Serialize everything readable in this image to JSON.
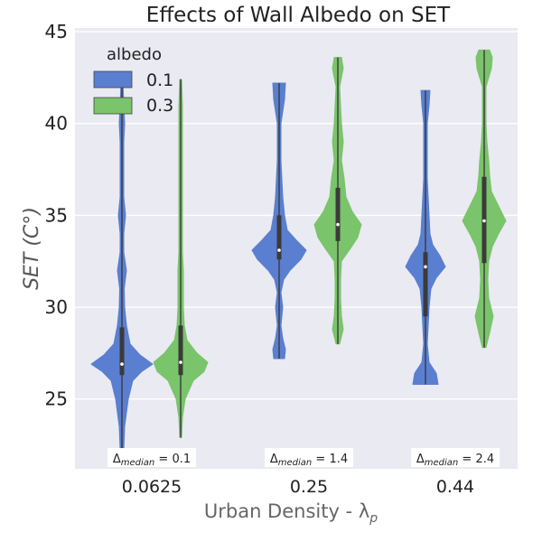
{
  "chart_data": {
    "type": "violin",
    "title": "Effects of Wall Albedo on SET",
    "xlabel": "Urban Density - λ",
    "xlabel_sub": "p",
    "ylabel": "SET (C°)",
    "ylim": [
      21.2,
      45.2
    ],
    "yticks": [
      25,
      30,
      35,
      40,
      45
    ],
    "categories": [
      "0.0625",
      "0.25",
      "0.44"
    ],
    "legend": {
      "title": "albedo",
      "placement": "top-left"
    },
    "series": [
      {
        "name": "0.1",
        "color": "#5a7fd0",
        "violins": [
          {
            "min": 22.2,
            "max": 42.3,
            "q1": 26.3,
            "median": 26.9,
            "q3": 28.9,
            "profile": [
              [
                22.2,
                2
              ],
              [
                23.5,
                3
              ],
              [
                25,
                7
              ],
              [
                26.0,
                12
              ],
              [
                26.5,
                22
              ],
              [
                26.9,
                34
              ],
              [
                27.4,
                20
              ],
              [
                28.0,
                9
              ],
              [
                29,
                5
              ],
              [
                30,
                3
              ],
              [
                31,
                2.5
              ],
              [
                32,
                5
              ],
              [
                33,
                2
              ],
              [
                34,
                2
              ],
              [
                35,
                4
              ],
              [
                36,
                2
              ],
              [
                37,
                2
              ],
              [
                39,
                2
              ],
              [
                40,
                3
              ],
              [
                41,
                2
              ],
              [
                42.3,
                1
              ]
            ]
          },
          {
            "min": 27.2,
            "max": 42.2,
            "q1": 32.6,
            "median": 33.1,
            "q3": 35.0,
            "profile": [
              [
                27.2,
                6
              ],
              [
                27.7,
                7
              ],
              [
                28.3,
                4
              ],
              [
                29,
                2
              ],
              [
                30,
                4
              ],
              [
                30.8,
                2
              ],
              [
                31.5,
                5
              ],
              [
                32,
                12
              ],
              [
                32.6,
                24
              ],
              [
                33.1,
                30
              ],
              [
                33.6,
                20
              ],
              [
                34.2,
                9
              ],
              [
                35,
                6
              ],
              [
                36,
                4
              ],
              [
                37,
                3
              ],
              [
                38,
                2
              ],
              [
                40,
                2
              ],
              [
                41.3,
                6
              ],
              [
                42.2,
                7
              ]
            ]
          },
          {
            "min": 25.8,
            "max": 41.8,
            "q1": 29.5,
            "median": 32.2,
            "q3": 33.0,
            "profile": [
              [
                25.8,
                14
              ],
              [
                26.4,
                12
              ],
              [
                27,
                4
              ],
              [
                28,
                2
              ],
              [
                29,
                3
              ],
              [
                30,
                4
              ],
              [
                31,
                6
              ],
              [
                31.6,
                12
              ],
              [
                32.2,
                22
              ],
              [
                32.8,
                16
              ],
              [
                33.4,
                8
              ],
              [
                34,
                5
              ],
              [
                35,
                4
              ],
              [
                36,
                3
              ],
              [
                37,
                2
              ],
              [
                38,
                2
              ],
              [
                39,
                2
              ],
              [
                40,
                2
              ],
              [
                41,
                4
              ],
              [
                41.8,
                5
              ]
            ]
          }
        ]
      },
      {
        "name": "0.3",
        "color": "#7ac46b",
        "violins": [
          {
            "min": 22.9,
            "max": 42.4,
            "q1": 26.3,
            "median": 27.0,
            "q3": 29.0,
            "profile": [
              [
                22.9,
                1
              ],
              [
                24,
                2
              ],
              [
                25,
                5
              ],
              [
                26.0,
                14
              ],
              [
                26.5,
                26
              ],
              [
                27.0,
                30
              ],
              [
                27.5,
                18
              ],
              [
                28.2,
                7
              ],
              [
                29,
                4
              ],
              [
                30,
                3
              ],
              [
                31,
                3
              ],
              [
                32,
                3
              ],
              [
                33,
                2
              ],
              [
                35,
                2
              ],
              [
                37,
                2
              ],
              [
                39,
                2
              ],
              [
                41,
                2
              ],
              [
                42.4,
                1
              ]
            ]
          },
          {
            "min": 28.0,
            "max": 43.6,
            "q1": 33.6,
            "median": 34.5,
            "q3": 36.5,
            "profile": [
              [
                28.0,
                2
              ],
              [
                28.8,
                6
              ],
              [
                29.5,
                4
              ],
              [
                30.5,
                3
              ],
              [
                31.5,
                3
              ],
              [
                32.5,
                4
              ],
              [
                33.2,
                14
              ],
              [
                33.8,
                22
              ],
              [
                34.5,
                26
              ],
              [
                35.2,
                16
              ],
              [
                36,
                9
              ],
              [
                37,
                7
              ],
              [
                38,
                4
              ],
              [
                39,
                6
              ],
              [
                40,
                4
              ],
              [
                41,
                3
              ],
              [
                42,
                2
              ],
              [
                43,
                6
              ],
              [
                43.6,
                4
              ]
            ]
          },
          {
            "min": 27.8,
            "max": 44.0,
            "q1": 32.4,
            "median": 34.7,
            "q3": 37.1,
            "profile": [
              [
                27.8,
                2
              ],
              [
                28.6,
                6
              ],
              [
                29.5,
                10
              ],
              [
                30.5,
                5
              ],
              [
                31.5,
                4
              ],
              [
                32.5,
                5
              ],
              [
                33.3,
                9
              ],
              [
                34,
                16
              ],
              [
                34.7,
                24
              ],
              [
                35.5,
                16
              ],
              [
                36.3,
                8
              ],
              [
                37.2,
                6
              ],
              [
                38,
                5
              ],
              [
                39,
                3
              ],
              [
                40,
                2
              ],
              [
                41,
                2
              ],
              [
                42,
                2
              ],
              [
                43,
                8
              ],
              [
                43.6,
                9
              ],
              [
                44.0,
                6
              ]
            ]
          }
        ]
      }
    ],
    "annotations": [
      {
        "label": "Δ",
        "sub": "median",
        "text": " = 0.1"
      },
      {
        "label": "Δ",
        "sub": "median",
        "text": " = 1.4"
      },
      {
        "label": "Δ",
        "sub": "median",
        "text": " = 2.4"
      }
    ],
    "grid": true,
    "background": "#eaeaf2"
  }
}
